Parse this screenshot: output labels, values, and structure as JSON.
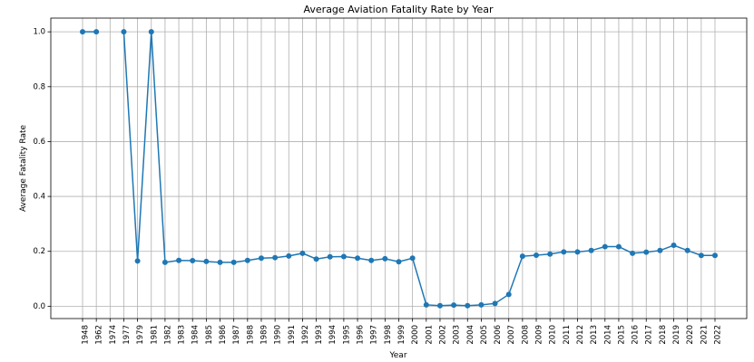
{
  "chart_data": {
    "type": "line",
    "title": "Average Aviation Fatality Rate by Year",
    "xlabel": "Year",
    "ylabel": "Average Fatality Rate",
    "ylim": [
      -0.045,
      1.05
    ],
    "yticks": [
      "0.0",
      "0.2",
      "0.4",
      "0.6",
      "0.8",
      "1.0"
    ],
    "grid": true,
    "color": "#1f77b4",
    "categories": [
      "1948",
      "1962",
      "1974",
      "1977",
      "1979",
      "1981",
      "1982",
      "1983",
      "1984",
      "1985",
      "1986",
      "1987",
      "1988",
      "1989",
      "1990",
      "1991",
      "1992",
      "1993",
      "1994",
      "1995",
      "1996",
      "1997",
      "1998",
      "1999",
      "2000",
      "2001",
      "2002",
      "2003",
      "2004",
      "2005",
      "2006",
      "2007",
      "2008",
      "2009",
      "2010",
      "2011",
      "2012",
      "2013",
      "2014",
      "2015",
      "2016",
      "2017",
      "2018",
      "2019",
      "2020",
      "2021",
      "2022"
    ],
    "series": [
      {
        "values": [
          1.0,
          1.0,
          null,
          1.0,
          0.165,
          1.0,
          0.16,
          0.167,
          0.166,
          0.163,
          0.16,
          0.16,
          0.167,
          0.175,
          0.177,
          0.183,
          0.193,
          0.172,
          0.18,
          0.181,
          0.175,
          0.167,
          0.173,
          0.162,
          0.175,
          0.005,
          0.002,
          0.004,
          0.002,
          0.005,
          0.01,
          0.043,
          0.182,
          0.186,
          0.19,
          0.198,
          0.198,
          0.203,
          0.217,
          0.217,
          0.193,
          0.197,
          0.203,
          0.222,
          0.203,
          0.185,
          0.185
        ]
      }
    ]
  }
}
